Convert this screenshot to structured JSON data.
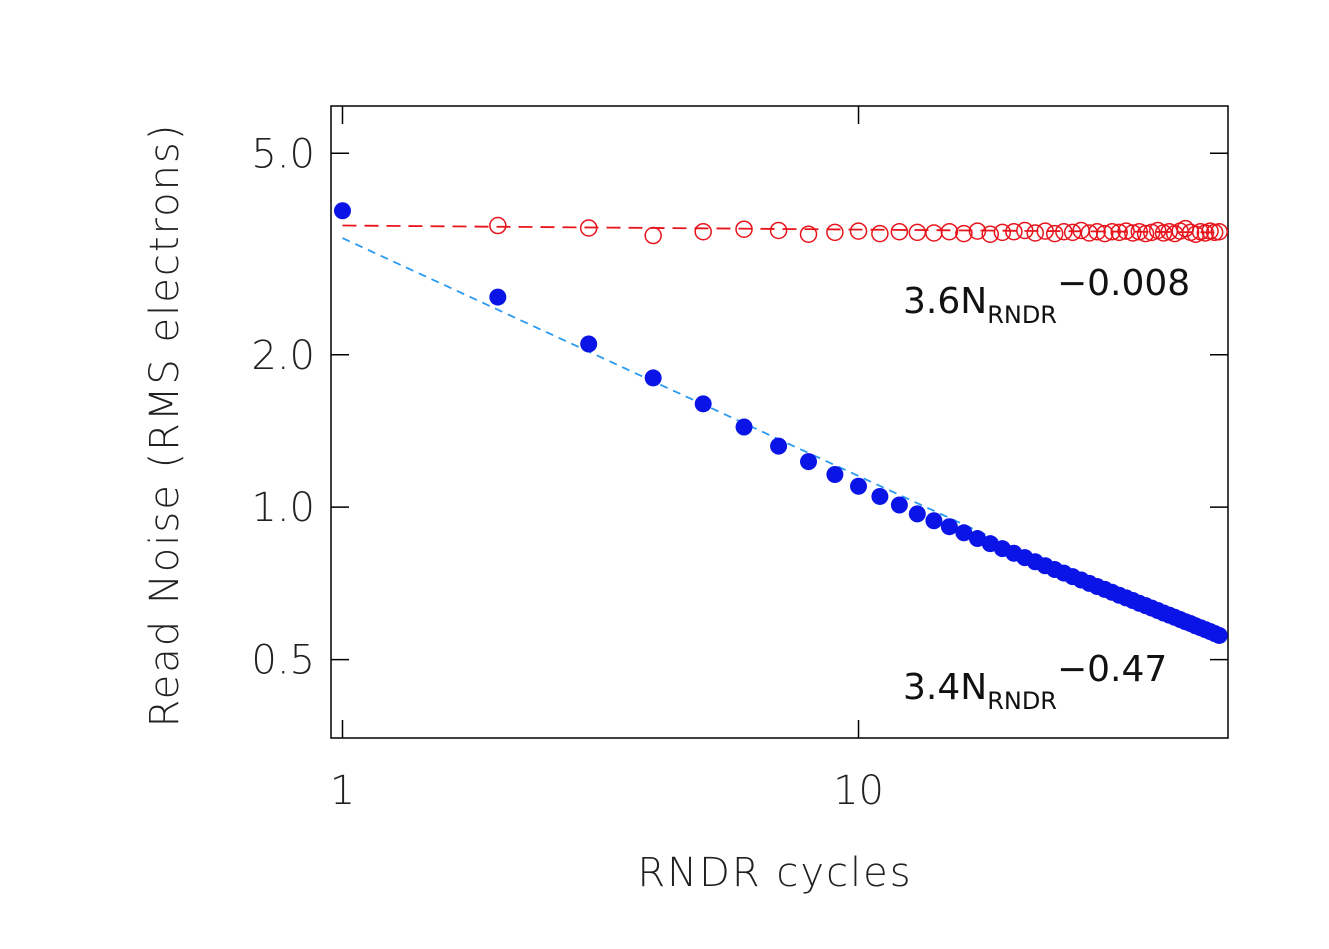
{
  "chart_data": {
    "type": "scatter",
    "xlabel": "RNDR cycles",
    "ylabel": "Read Noise (RMS electrons)",
    "x_scale": "log",
    "y_scale": "log",
    "xlim": [
      0.95,
      52
    ],
    "ylim": [
      0.35,
      6.2
    ],
    "x_ticks": [
      {
        "value": 1,
        "label": "1"
      },
      {
        "value": 10,
        "label": "10"
      }
    ],
    "y_ticks": [
      {
        "value": 0.5,
        "label": "0.5"
      },
      {
        "value": 1.0,
        "label": "1.0"
      },
      {
        "value": 2.0,
        "label": "2.0"
      },
      {
        "value": 5.0,
        "label": "5.0"
      }
    ],
    "grid": false,
    "series": [
      {
        "marker": "open-circle",
        "color": "#e8141c",
        "x": [
          2,
          3,
          4,
          5,
          6,
          7,
          8,
          9,
          10,
          11,
          12,
          13,
          14,
          15,
          16,
          17,
          18,
          19,
          20,
          21,
          22,
          23,
          24,
          25,
          26,
          27,
          28,
          29,
          30,
          31,
          32,
          33,
          34,
          35,
          36,
          37,
          38,
          39,
          40,
          41,
          42,
          43,
          44,
          45,
          46,
          47,
          48,
          49,
          50
        ],
        "y": [
          3.6,
          3.56,
          3.44,
          3.5,
          3.54,
          3.52,
          3.46,
          3.49,
          3.51,
          3.47,
          3.5,
          3.49,
          3.48,
          3.5,
          3.47,
          3.51,
          3.46,
          3.49,
          3.5,
          3.52,
          3.48,
          3.51,
          3.47,
          3.5,
          3.49,
          3.52,
          3.48,
          3.5,
          3.47,
          3.5,
          3.49,
          3.51,
          3.48,
          3.5,
          3.47,
          3.49,
          3.52,
          3.48,
          3.5,
          3.47,
          3.51,
          3.55,
          3.49,
          3.46,
          3.5,
          3.48,
          3.51,
          3.49,
          3.5
        ]
      },
      {
        "marker": "filled-circle",
        "color": "#0a14e6",
        "x": [
          1,
          2,
          3,
          4,
          5,
          6,
          7,
          8,
          9,
          10,
          11,
          12,
          13,
          14,
          15,
          16,
          17,
          18,
          19,
          20,
          21,
          22,
          23,
          24,
          25,
          26,
          27,
          28,
          29,
          30,
          31,
          32,
          33,
          34,
          35,
          36,
          37,
          38,
          39,
          40,
          41,
          42,
          43,
          44,
          45,
          46,
          47,
          48,
          49,
          50
        ],
        "y": [
          3.85,
          2.6,
          2.1,
          1.8,
          1.6,
          1.44,
          1.32,
          1.23,
          1.16,
          1.1,
          1.05,
          1.01,
          0.97,
          0.94,
          0.915,
          0.89,
          0.867,
          0.847,
          0.828,
          0.811,
          0.795,
          0.78,
          0.766,
          0.753,
          0.741,
          0.729,
          0.718,
          0.707,
          0.697,
          0.688,
          0.679,
          0.67,
          0.662,
          0.654,
          0.646,
          0.639,
          0.632,
          0.625,
          0.618,
          0.612,
          0.606,
          0.6,
          0.594,
          0.589,
          0.583,
          0.578,
          0.573,
          0.568,
          0.563,
          0.558
        ]
      }
    ],
    "fits": [
      {
        "color": "#e8141c",
        "dash": "long",
        "coef": 3.6,
        "exponent": -0.008
      },
      {
        "color": "#2a9af0",
        "dash": "short",
        "coef": 3.4,
        "exponent": -0.47
      }
    ],
    "annotations": [
      {
        "coef_text": "3.6N",
        "sub_text": "RNDR",
        "exp_text": "−0.008"
      },
      {
        "coef_text": "3.4N",
        "sub_text": "RNDR",
        "exp_text": "−0.47"
      }
    ]
  }
}
